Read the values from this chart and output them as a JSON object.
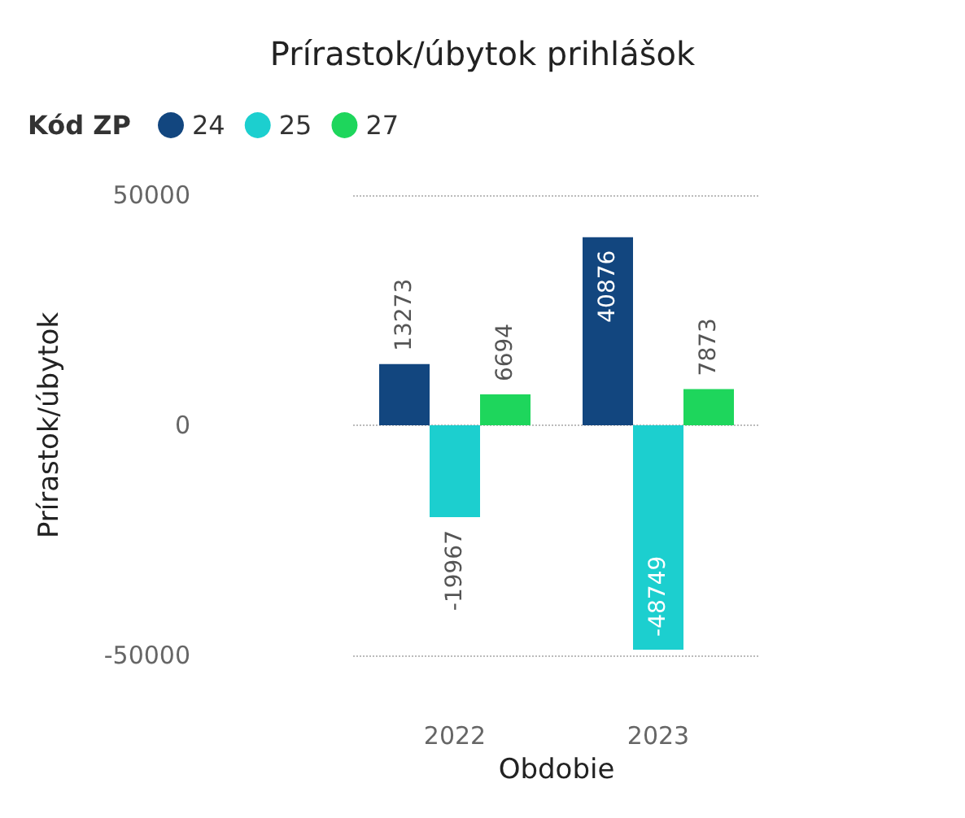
{
  "chart_data": {
    "type": "bar",
    "title": "Prírastok/úbytok prihlášok",
    "xlabel": "Obdobie",
    "ylabel": "Prírastok/úbytok",
    "legend_title": "Kód ZP",
    "legend": "top left",
    "categories": [
      "2022",
      "2023"
    ],
    "series": [
      {
        "name": "24",
        "color": "#12467f",
        "values": [
          13273,
          40876
        ]
      },
      {
        "name": "25",
        "color": "#1ccfcf",
        "values": [
          -19967,
          -48749
        ]
      },
      {
        "name": "27",
        "color": "#1ed65c",
        "values": [
          6694,
          7873
        ]
      }
    ],
    "ylim": [
      -50000,
      50000
    ],
    "yticks": [
      -50000,
      0,
      50000
    ],
    "grid": "y",
    "data_labels": true
  }
}
